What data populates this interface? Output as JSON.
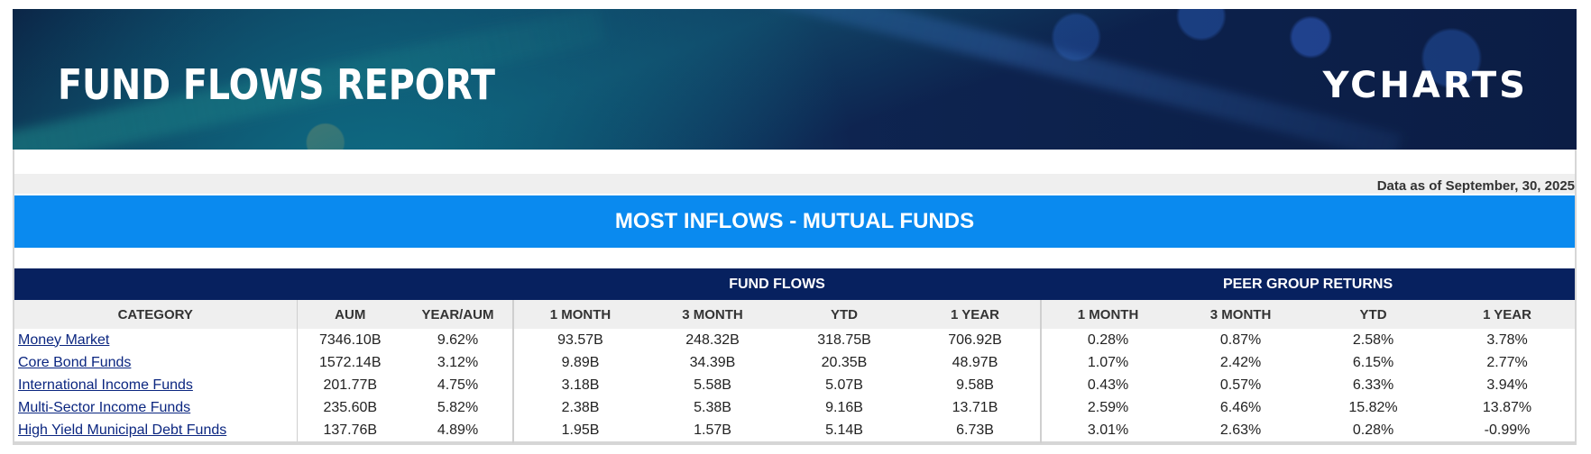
{
  "banner": {
    "title": "FUND FLOWS REPORT",
    "brand": "YCHARTS"
  },
  "data_as_of": "Data as of September, 30, 2025",
  "section_title": "MOST INFLOWS - MUTUAL FUNDS",
  "table": {
    "group_headers": {
      "fund_flows": "FUND FLOWS",
      "peer_group_returns": "PEER GROUP RETURNS"
    },
    "columns": [
      "CATEGORY",
      "AUM",
      "YEAR/AUM",
      "1 MONTH",
      "3 MONTH",
      "YTD",
      "1 YEAR",
      "1 MONTH",
      "3 MONTH",
      "YTD",
      "1 YEAR"
    ],
    "rows": [
      [
        "Money Market",
        "7346.10B",
        "9.62%",
        "93.57B",
        "248.32B",
        "318.75B",
        "706.92B",
        "0.28%",
        "0.87%",
        "2.58%",
        "3.78%"
      ],
      [
        "Core Bond Funds",
        "1572.14B",
        "3.12%",
        "9.89B",
        "34.39B",
        "20.35B",
        "48.97B",
        "1.07%",
        "2.42%",
        "6.15%",
        "2.77%"
      ],
      [
        "International Income Funds",
        "201.77B",
        "4.75%",
        "3.18B",
        "5.58B",
        "5.07B",
        "9.58B",
        "0.43%",
        "0.57%",
        "6.33%",
        "3.94%"
      ],
      [
        "Multi-Sector Income Funds",
        "235.60B",
        "5.82%",
        "2.38B",
        "5.38B",
        "9.16B",
        "13.71B",
        "2.59%",
        "6.46%",
        "15.82%",
        "13.87%"
      ],
      [
        "High Yield Municipal Debt Funds",
        "137.76B",
        "4.89%",
        "1.95B",
        "1.57B",
        "5.14B",
        "6.73B",
        "3.01%",
        "2.63%",
        "0.28%",
        "-0.99%"
      ]
    ]
  },
  "colors": {
    "banner_bg": "#0e2552",
    "section_bar": "#0a8aef",
    "group_header": "#07215f",
    "link": "#0b2680"
  }
}
